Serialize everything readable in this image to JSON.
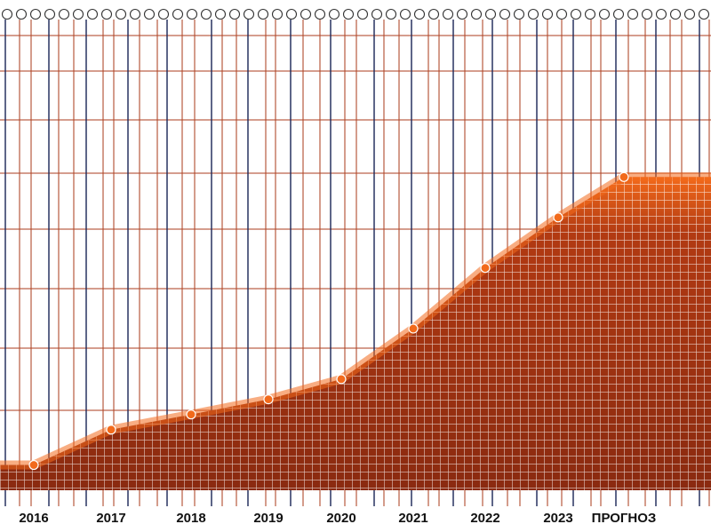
{
  "chart_data": {
    "type": "area",
    "title": "",
    "xlabel": "",
    "ylabel": "",
    "categories": [
      "2016",
      "2017",
      "2018",
      "2019",
      "2020",
      "2021",
      "2022",
      "2023",
      "ПРОГНОЗ"
    ],
    "series": [
      {
        "values": [
          5,
          12,
          15,
          18,
          22,
          32,
          44,
          54,
          62
        ]
      }
    ],
    "ylim": [
      0,
      90
    ],
    "grid": true,
    "legend": "none",
    "colors": {
      "fill_dark": "#8a2a10",
      "fill_mid": "#b23a12",
      "fill_bright": "#f26a1b",
      "vline_navy": "#1f2a5a",
      "vline_rust": "#b0482a",
      "hline": "#b0482a",
      "background": "#ffffff"
    }
  }
}
